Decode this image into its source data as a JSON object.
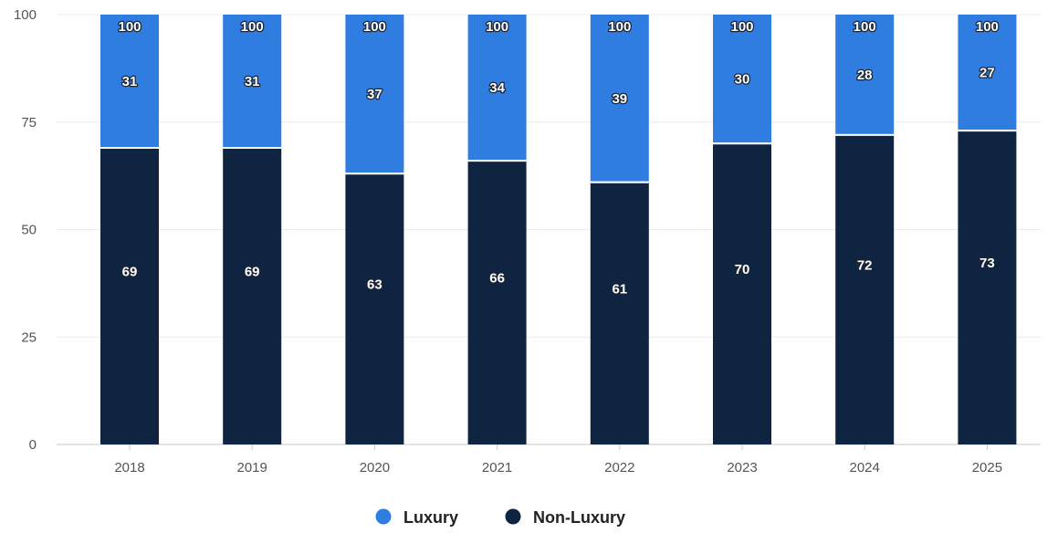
{
  "chart_data": {
    "type": "bar",
    "stacked": true,
    "categories": [
      "2018",
      "2019",
      "2020",
      "2021",
      "2022",
      "2023",
      "2024",
      "2025"
    ],
    "series": [
      {
        "name": "Non-Luxury",
        "color": "#0f2440",
        "values": [
          69,
          69,
          63,
          66,
          61,
          70,
          72,
          73
        ]
      },
      {
        "name": "Luxury",
        "color": "#2f7de1",
        "values": [
          31,
          31,
          37,
          34,
          39,
          30,
          28,
          27
        ]
      }
    ],
    "totals": [
      100,
      100,
      100,
      100,
      100,
      100,
      100,
      100
    ],
    "yticks": [
      0,
      25,
      50,
      75,
      100
    ],
    "ylim": [
      0,
      100
    ],
    "grid": true,
    "legend": "bottom-center",
    "legend_order": [
      "Luxury",
      "Non-Luxury"
    ]
  }
}
